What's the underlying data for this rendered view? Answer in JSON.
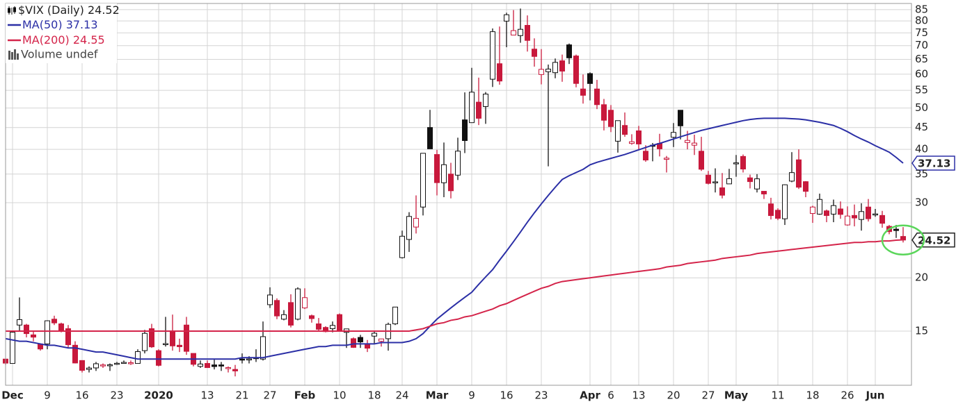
{
  "chart_data": {
    "type": "candlestick",
    "symbol_label": "$VIX (Daily)",
    "volume_label": "Volume undef",
    "categories": [
      null,
      "Dec",
      null,
      null,
      null,
      null,
      "9",
      null,
      null,
      null,
      null,
      "16",
      null,
      null,
      null,
      null,
      "23",
      null,
      null,
      null,
      null,
      null,
      "2020",
      null,
      null,
      null,
      null,
      null,
      null,
      "13",
      null,
      null,
      null,
      null,
      "21",
      null,
      null,
      null,
      "27",
      null,
      null,
      null,
      null,
      "Feb",
      null,
      null,
      null,
      null,
      "10",
      null,
      null,
      null,
      null,
      "18",
      null,
      null,
      null,
      "24",
      null,
      null,
      null,
      null,
      "Mar",
      null,
      null,
      null,
      null,
      "9",
      null,
      null,
      null,
      null,
      "16",
      null,
      null,
      null,
      null,
      "23",
      null,
      null,
      null,
      null,
      null,
      null,
      "Apr",
      null,
      null,
      "6",
      null,
      null,
      null,
      "13",
      null,
      null,
      null,
      null,
      "20",
      null,
      null,
      null,
      null,
      "27",
      null,
      null,
      null,
      "May",
      null,
      null,
      null,
      null,
      null,
      "11",
      null,
      null,
      null,
      null,
      "18",
      null,
      null,
      null,
      null,
      "26",
      null,
      null,
      null,
      "Jun",
      null,
      null,
      null,
      null
    ],
    "open": [
      12.9,
      12.6,
      15.5,
      15.5,
      14.7,
      14.0,
      14.0,
      16.0,
      15.6,
      15.2,
      13.9,
      12.8,
      12.2,
      12.3,
      12.5,
      12.5,
      12.6,
      12.6,
      12.6,
      12.6,
      13.5,
      15.2,
      13.5,
      14.0,
      15.0,
      13.9,
      15.5,
      13.3,
      12.4,
      12.6,
      12.5,
      12.5,
      12.3,
      12.2,
      12.9,
      12.9,
      13.0,
      12.9,
      17.3,
      17.7,
      16.0,
      17.5,
      16.0,
      17.0,
      16.3,
      15.6,
      15.3,
      15.2,
      16.4,
      14.9,
      14.4,
      14.5,
      14.0,
      14.6,
      14.2,
      14.4,
      15.6,
      22.3,
      24.6,
      26.3,
      29.3,
      45.0,
      38.9,
      33.4,
      35.0,
      34.8,
      46.9,
      46.2,
      51.6,
      50.4,
      58.4,
      63.5,
      79.9,
      74.1,
      73.9,
      78.1,
      68.7,
      59.9,
      60.8,
      60.5,
      64.5,
      70.3,
      66.2,
      55.4,
      60.2,
      55.4,
      50.9,
      49.4,
      41.8,
      45.5,
      41.3,
      44.2,
      39.6,
      40.9,
      41.3,
      37.9,
      42.7,
      49.4,
      41.5,
      40.9,
      39.6,
      34.8,
      33.4,
      32.5,
      33.2,
      37.1,
      38.5,
      34.3,
      32.3,
      31.9,
      29.8,
      28.8,
      27.5,
      33.7,
      37.8,
      33.6,
      28.3,
      28.2,
      28.7,
      28.2,
      29.0,
      26.6,
      28.0,
      27.4,
      29.3,
      28.1,
      28.0,
      26.4,
      26.0,
      25.0
    ],
    "high": [
      12.9,
      15.0,
      17.99,
      15.6,
      15.0,
      14.0,
      15.9,
      16.3,
      15.7,
      15.5,
      14.2,
      12.8,
      12.4,
      12.7,
      12.6,
      12.6,
      12.7,
      12.8,
      12.8,
      13.6,
      15.1,
      15.6,
      13.6,
      16.2,
      16.4,
      14.4,
      16.2,
      13.3,
      12.8,
      12.8,
      12.9,
      12.7,
      12.4,
      12.5,
      13.3,
      13.1,
      13.6,
      15.8,
      19.0,
      17.9,
      16.8,
      18.3,
      19.0,
      18.9,
      16.4,
      16.1,
      15.4,
      15.8,
      16.5,
      15.2,
      14.5,
      14.7,
      14.3,
      15.0,
      14.4,
      15.7,
      17.1,
      25.8,
      28.5,
      31.2,
      39.2,
      49.5,
      39.9,
      41.5,
      37.2,
      42.6,
      54.4,
      62.1,
      58.9,
      54.5,
      76.8,
      77.6,
      83.6,
      84.8,
      85.5,
      82.4,
      72.8,
      68.7,
      63.2,
      65.3,
      66.7,
      70.8,
      66.7,
      59.9,
      60.6,
      58.2,
      52.5,
      50.8,
      46.6,
      48.8,
      43.4,
      45.4,
      40.9,
      41.4,
      43.5,
      38.6,
      46.1,
      49.4,
      44.2,
      43.3,
      42.8,
      35.6,
      36.1,
      35.2,
      36.0,
      38.8,
      38.9,
      34.9,
      35.0,
      31.9,
      30.8,
      29.1,
      33.1,
      39.4,
      40.0,
      33.7,
      29.5,
      31.5,
      28.9,
      30.5,
      30.2,
      29.4,
      29.7,
      29.9,
      30.6,
      29.0,
      28.7,
      26.6,
      26.6,
      26.3
    ],
    "low": [
      12.5,
      12.6,
      15.0,
      14.5,
      14.2,
      13.5,
      13.6,
      15.5,
      14.9,
      13.7,
      12.6,
      12.0,
      12.0,
      12.1,
      12.3,
      12.1,
      12.5,
      12.6,
      12.5,
      12.6,
      13.3,
      13.7,
      12.4,
      13.8,
      13.5,
      13.4,
      13.2,
      12.4,
      12.3,
      12.3,
      12.2,
      12.1,
      12.0,
      11.75,
      12.6,
      12.6,
      12.7,
      12.8,
      17.0,
      16.0,
      15.9,
      15.3,
      15.9,
      16.9,
      15.7,
      15.0,
      14.9,
      14.9,
      15.0,
      13.7,
      13.7,
      13.7,
      13.4,
      14.0,
      13.8,
      13.5,
      15.5,
      22.2,
      23.0,
      25.4,
      28.0,
      40.2,
      31.2,
      30.9,
      30.7,
      33.9,
      39.2,
      46.2,
      45.6,
      45.9,
      56.0,
      56.7,
      69.4,
      74.1,
      71.1,
      67.8,
      62.5,
      56.8,
      36.5,
      58.7,
      57.6,
      63.4,
      55.9,
      51.2,
      52.1,
      49.7,
      44.3,
      43.9,
      39.3,
      42.8,
      41.0,
      40.0,
      37.4,
      37.5,
      38.5,
      35.3,
      40.5,
      42.2,
      40.0,
      38.8,
      35.6,
      33.1,
      31.7,
      30.7,
      33.2,
      34.5,
      35.3,
      32.4,
      31.7,
      30.6,
      27.4,
      27.3,
      26.6,
      33.5,
      32.3,
      30.9,
      26.9,
      28.1,
      27.0,
      27.0,
      27.5,
      26.5,
      26.4,
      25.8,
      27.1,
      27.8,
      26.2,
      25.3,
      24.8,
      24.2
    ],
    "close": [
      12.62,
      14.91,
      15.96,
      14.8,
      14.52,
      13.62,
      15.86,
      15.68,
      14.99,
      13.94,
      12.63,
      12.14,
      12.29,
      12.58,
      12.5,
      12.51,
      12.61,
      12.67,
      12.65,
      13.43,
      14.82,
      13.78,
      12.47,
      14.02,
      13.85,
      13.79,
      13.45,
      12.54,
      12.56,
      12.32,
      12.39,
      12.42,
      12.32,
      12.1,
      12.85,
      12.91,
      12.98,
      14.56,
      18.23,
      16.28,
      16.39,
      15.49,
      18.84,
      17.97,
      16.05,
      15.15,
      14.96,
      15.47,
      15.04,
      15.18,
      13.74,
      14.15,
      13.68,
      14.83,
      14.38,
      15.56,
      17.08,
      25.03,
      27.85,
      27.56,
      39.16,
      40.11,
      33.42,
      36.82,
      31.99,
      39.62,
      41.94,
      54.46,
      47.3,
      53.9,
      75.47,
      57.83,
      82.69,
      75.91,
      76.45,
      72.0,
      66.04,
      61.59,
      61.67,
      63.95,
      61.0,
      65.54,
      57.08,
      53.54,
      57.06,
      50.91,
      46.8,
      45.24,
      46.7,
      43.35,
      41.67,
      41.17,
      37.76,
      40.84,
      40.11,
      38.15,
      43.83,
      45.41,
      41.98,
      41.38,
      35.93,
      33.29,
      33.57,
      31.23,
      34.15,
      37.19,
      35.97,
      33.61,
      34.12,
      31.44,
      27.98,
      27.57,
      33.04,
      35.28,
      32.61,
      31.89,
      29.3,
      30.53,
      27.99,
      29.53,
      28.16,
      27.91,
      27.62,
      28.59,
      27.51,
      28.23,
      26.84,
      25.66,
      25.81,
      24.52
    ],
    "series": [
      {
        "name": "MA(50)",
        "color": "#2b2fa6",
        "values": [
          14.4,
          14.3,
          14.2,
          14.2,
          14.1,
          14.0,
          13.9,
          13.9,
          13.8,
          13.7,
          13.7,
          13.6,
          13.5,
          13.4,
          13.4,
          13.3,
          13.2,
          13.1,
          13.0,
          12.9,
          12.9,
          12.9,
          12.9,
          12.9,
          12.9,
          12.9,
          12.9,
          12.9,
          12.9,
          12.9,
          12.9,
          12.9,
          12.9,
          12.9,
          13.0,
          13.0,
          13.0,
          13.0,
          13.1,
          13.2,
          13.3,
          13.4,
          13.5,
          13.6,
          13.7,
          13.8,
          13.8,
          13.9,
          13.9,
          13.9,
          14.0,
          14.0,
          14.0,
          14.0,
          14.1,
          14.1,
          14.1,
          14.1,
          14.2,
          14.4,
          14.8,
          15.4,
          16.0,
          16.5,
          17.0,
          17.5,
          18.0,
          18.5,
          19.3,
          20.1,
          20.9,
          22.0,
          23.1,
          24.3,
          25.6,
          27.0,
          28.4,
          29.8,
          31.2,
          32.6,
          34.0,
          34.7,
          35.3,
          35.9,
          36.8,
          37.3,
          37.7,
          38.1,
          38.5,
          38.9,
          39.4,
          39.9,
          40.4,
          40.9,
          41.3,
          41.8,
          42.3,
          42.8,
          43.3,
          43.8,
          44.3,
          44.7,
          45.1,
          45.5,
          45.9,
          46.3,
          46.7,
          47.0,
          47.2,
          47.3,
          47.3,
          47.3,
          47.3,
          47.2,
          47.1,
          46.9,
          46.6,
          46.3,
          45.9,
          45.5,
          44.8,
          44.0,
          43.1,
          42.3,
          41.6,
          40.8,
          40.1,
          39.4,
          38.3,
          37.13
        ]
      },
      {
        "name": "MA(200)",
        "color": "#d4244a",
        "values": [
          15.0,
          15.0,
          15.0,
          15.0,
          15.0,
          15.0,
          15.0,
          15.0,
          15.0,
          15.0,
          15.0,
          15.0,
          15.0,
          15.0,
          15.0,
          15.0,
          15.0,
          15.0,
          15.0,
          15.0,
          15.0,
          15.0,
          15.0,
          15.0,
          15.0,
          15.0,
          15.0,
          15.0,
          15.0,
          15.0,
          15.0,
          15.0,
          15.0,
          15.0,
          15.0,
          15.0,
          15.0,
          15.0,
          15.0,
          15.0,
          15.0,
          15.0,
          15.0,
          15.0,
          15.0,
          15.0,
          15.0,
          15.0,
          15.0,
          15.0,
          15.0,
          15.0,
          15.0,
          15.0,
          15.0,
          15.0,
          15.0,
          15.0,
          15.0,
          15.1,
          15.2,
          15.4,
          15.6,
          15.7,
          15.9,
          16.0,
          16.2,
          16.3,
          16.5,
          16.7,
          16.9,
          17.2,
          17.4,
          17.7,
          18.0,
          18.3,
          18.6,
          18.9,
          19.1,
          19.4,
          19.6,
          19.7,
          19.8,
          19.9,
          20.0,
          20.1,
          20.2,
          20.3,
          20.4,
          20.5,
          20.6,
          20.7,
          20.8,
          20.9,
          21.0,
          21.2,
          21.3,
          21.4,
          21.6,
          21.7,
          21.8,
          21.9,
          22.0,
          22.2,
          22.3,
          22.4,
          22.5,
          22.6,
          22.8,
          22.9,
          23.0,
          23.1,
          23.2,
          23.3,
          23.4,
          23.5,
          23.6,
          23.7,
          23.8,
          23.9,
          24.0,
          24.1,
          24.2,
          24.2,
          24.3,
          24.3,
          24.4,
          24.4,
          24.5,
          24.55
        ]
      }
    ],
    "up_color": "#111111",
    "down_color": "#c8193c",
    "ylim": [
      11.2,
      86.9
    ],
    "yticks": [
      15,
      20,
      30,
      35,
      40,
      45,
      50,
      55,
      60,
      65,
      70,
      75,
      80,
      85
    ],
    "log_scale": true,
    "grid": true
  }
}
